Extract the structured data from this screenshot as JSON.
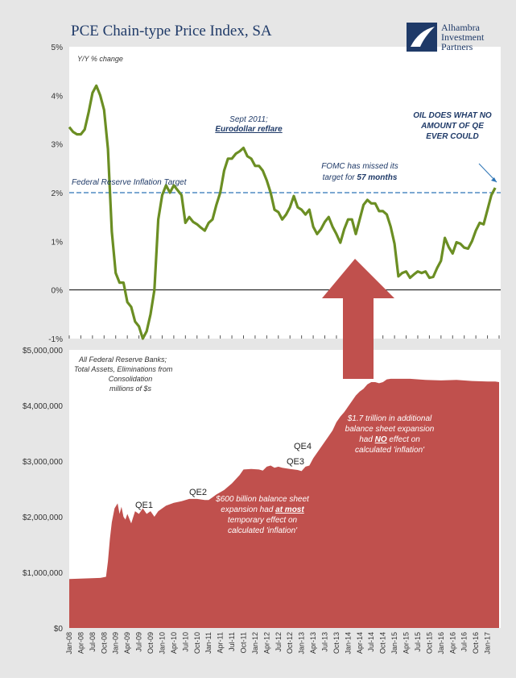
{
  "chart_data": [
    {
      "type": "line",
      "title": "PCE Chain-type Price Index, SA",
      "ylabel": "Y/Y % change",
      "ylim": [
        -1,
        5
      ],
      "y_ticks": [
        "-1%",
        "0%",
        "1%",
        "2%",
        "3%",
        "4%",
        "5%"
      ],
      "grid": false,
      "series": [
        {
          "values": [
            3.35,
            3.25,
            3.2,
            3.2,
            3.3,
            3.65,
            4.05,
            4.2,
            4.0,
            3.7,
            2.9,
            1.2,
            0.35,
            0.15,
            0.15,
            -0.25,
            -0.35,
            -0.65,
            -0.75,
            -1.0,
            -0.85,
            -0.5,
            0.0,
            1.45,
            1.95,
            2.15,
            2.0,
            2.15,
            2.05,
            1.95,
            1.38,
            1.5,
            1.4,
            1.35,
            1.28,
            1.22,
            1.38,
            1.45,
            1.75,
            2.0,
            2.45,
            2.7,
            2.7,
            2.8,
            2.85,
            2.92,
            2.75,
            2.7,
            2.55,
            2.55,
            2.45,
            2.25,
            2.0,
            1.65,
            1.6,
            1.45,
            1.55,
            1.7,
            1.93,
            1.7,
            1.65,
            1.55,
            1.65,
            1.3,
            1.15,
            1.25,
            1.4,
            1.5,
            1.3,
            1.15,
            0.97,
            1.25,
            1.45,
            1.45,
            1.15,
            1.45,
            1.75,
            1.85,
            1.78,
            1.78,
            1.62,
            1.62,
            1.55,
            1.3,
            0.95,
            0.28,
            0.35,
            0.38,
            0.25,
            0.32,
            0.38,
            0.35,
            0.38,
            0.25,
            0.27,
            0.45,
            0.6,
            1.07,
            0.88,
            0.75,
            0.98,
            0.95,
            0.87,
            0.85,
            1.0,
            1.22,
            1.38,
            1.35,
            1.65,
            1.95,
            2.1
          ]
        }
      ],
      "reference_line": {
        "value": 2,
        "label": "Federal Reserve Inflation Target"
      },
      "annotations": {
        "sept2011_line1": "Sept 2011;",
        "sept2011_line2": "Eurodollar  reflare",
        "fomc_line1": "FOMC has missed its",
        "fomc_line2_prefix": "target for ",
        "fomc_line2_bold": "57 months",
        "oil_line1": "OIL DOES WHAT NO",
        "oil_line2": "AMOUNT OF QE",
        "oil_line3": "EVER COULD"
      }
    },
    {
      "type": "area",
      "ylim": [
        0,
        5000000
      ],
      "y_ticks": [
        "$0",
        "$1,000,000",
        "$2,000,000",
        "$3,000,000",
        "$4,000,000",
        "$5,000,000"
      ],
      "x_tick_labels": [
        "Jan-08",
        "Apr-08",
        "Jul-08",
        "Oct-08",
        "Jan-09",
        "Apr-09",
        "Jul-09",
        "Oct-09",
        "Jan-10",
        "Apr-10",
        "Jul-10",
        "Oct-10",
        "Jan-11",
        "Apr-11",
        "Jul-11",
        "Oct-11",
        "Jan-12",
        "Apr-12",
        "Jul-12",
        "Oct-12",
        "Jan-13",
        "Apr-13",
        "Jul-13",
        "Oct-13",
        "Jan-14",
        "Apr-14",
        "Jul-14",
        "Oct-14",
        "Jan-15",
        "Apr-15",
        "Jul-15",
        "Oct-15",
        "Jan-16",
        "Apr-16",
        "Jul-16",
        "Oct-16",
        "Jan-17"
      ],
      "series": [
        {
          "points": [
            [
              0,
              880000
            ],
            [
              8,
              900000
            ],
            [
              9.5,
              920000
            ],
            [
              10,
              1200000
            ],
            [
              10.5,
              1600000
            ],
            [
              11,
              1900000
            ],
            [
              11.7,
              2150000
            ],
            [
              12.5,
              2240000
            ],
            [
              13,
              2050000
            ],
            [
              13.5,
              2180000
            ],
            [
              14,
              2000000
            ],
            [
              14.5,
              1950000
            ],
            [
              15,
              2050000
            ],
            [
              16,
              1880000
            ],
            [
              17,
              2100000
            ],
            [
              18,
              2050000
            ],
            [
              19,
              2150000
            ],
            [
              20,
              2050000
            ],
            [
              21,
              2100000
            ],
            [
              22,
              2000000
            ],
            [
              23,
              2100000
            ],
            [
              24,
              2150000
            ],
            [
              25,
              2200000
            ],
            [
              27,
              2250000
            ],
            [
              29,
              2280000
            ],
            [
              31,
              2320000
            ],
            [
              33,
              2320000
            ],
            [
              35,
              2300000
            ],
            [
              36,
              2300000
            ],
            [
              37,
              2350000
            ],
            [
              38,
              2400000
            ],
            [
              40,
              2480000
            ],
            [
              42,
              2600000
            ],
            [
              44,
              2750000
            ],
            [
              45,
              2850000
            ],
            [
              47,
              2860000
            ],
            [
              49,
              2850000
            ],
            [
              50,
              2830000
            ],
            [
              51,
              2900000
            ],
            [
              52,
              2920000
            ],
            [
              53,
              2880000
            ],
            [
              54,
              2900000
            ],
            [
              55,
              2880000
            ],
            [
              57,
              2860000
            ],
            [
              59,
              2840000
            ],
            [
              60,
              2820000
            ],
            [
              61,
              2900000
            ],
            [
              62,
              2920000
            ],
            [
              63,
              3050000
            ],
            [
              64,
              3150000
            ],
            [
              65,
              3250000
            ],
            [
              66,
              3350000
            ],
            [
              67,
              3450000
            ],
            [
              68,
              3550000
            ],
            [
              69,
              3700000
            ],
            [
              70,
              3800000
            ],
            [
              71,
              3880000
            ],
            [
              72,
              3980000
            ],
            [
              73,
              4080000
            ],
            [
              74,
              4180000
            ],
            [
              75,
              4250000
            ],
            [
              76,
              4300000
            ],
            [
              77,
              4380000
            ],
            [
              78,
              4420000
            ],
            [
              79,
              4420000
            ],
            [
              80,
              4400000
            ],
            [
              81,
              4420000
            ],
            [
              82,
              4470000
            ],
            [
              83,
              4480000
            ],
            [
              84,
              4480000
            ],
            [
              88,
              4480000
            ],
            [
              92,
              4460000
            ],
            [
              96,
              4450000
            ],
            [
              100,
              4460000
            ],
            [
              104,
              4440000
            ],
            [
              108,
              4430000
            ],
            [
              110,
              4430000
            ],
            [
              111,
              4420000
            ]
          ]
        }
      ],
      "y_caption": {
        "line1": "All Federal Reserve Banks;",
        "line2": "Total Assets, Eliminations from",
        "line3": "Consolidation",
        "line4": "millions of $s"
      },
      "labels": {
        "qe1": "QE1",
        "qe2": "QE2",
        "qe3": "QE3",
        "qe4": "QE4"
      },
      "annotations": {
        "a600_line1": "$600 billion balance sheet",
        "a600_line2_prefix": "expansion had ",
        "a600_line2_bold": "at most",
        "a600_line3": "temporary effect on",
        "a600_line4": "calculated 'inflation'",
        "a17_line1": "$1.7 trillion in additional",
        "a17_line2": "balance sheet expansion",
        "a17_line3_prefix": "had ",
        "a17_line3_bold": "NO",
        "a17_line3_suffix": " effect on",
        "a17_line4": "calculated 'inflation'"
      }
    }
  ],
  "logo": {
    "line1": "Alhambra",
    "line2": "Investment",
    "line3": "Partners"
  },
  "colors": {
    "line": "#6b8e23",
    "area": "#c0504d",
    "target": "#2e75b6",
    "background": "#e6e6e6",
    "title": "#1f3a68"
  }
}
